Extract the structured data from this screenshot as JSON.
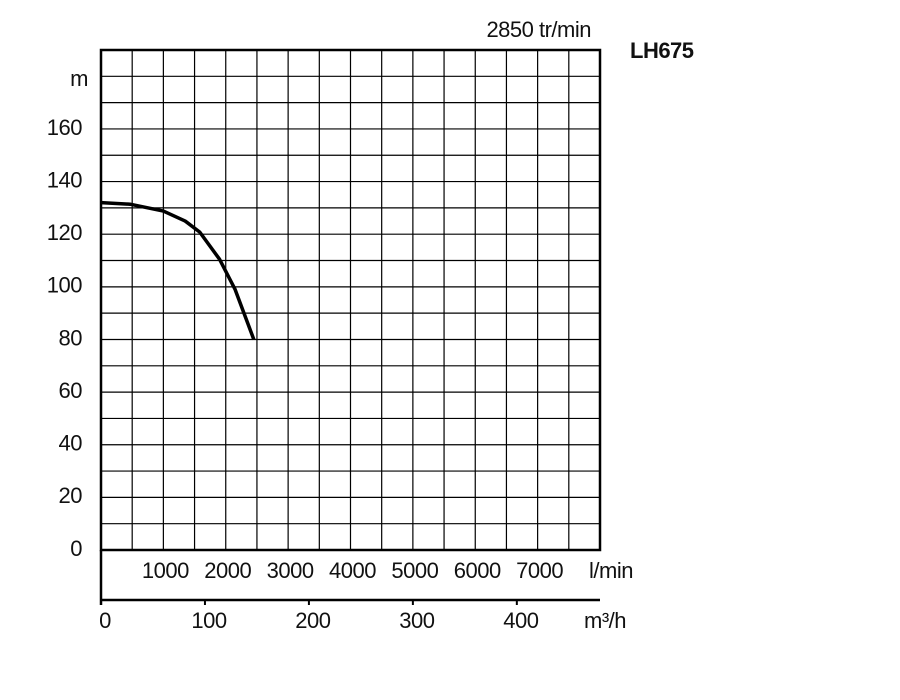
{
  "chart_data": {
    "type": "line",
    "title": "LH675",
    "subtitle": "2850 tr/min",
    "y_label": "m",
    "x_label": "m³/h",
    "x2_label": "l/min",
    "x": [
      0,
      28,
      60,
      81,
      95,
      114,
      129,
      147
    ],
    "series": [
      {
        "name": "LH675",
        "color": "#000000",
        "values": [
          132,
          131.4,
          128.8,
          125,
          120.8,
          110.5,
          99,
          80
        ]
      }
    ],
    "xlim": [
      0,
      480
    ],
    "xticks": [
      0,
      100,
      200,
      300,
      400
    ],
    "x2lim": [
      0,
      8000
    ],
    "x2ticks": [
      1000,
      2000,
      3000,
      4000,
      5000,
      6000,
      7000
    ],
    "ylim": [
      0,
      190
    ],
    "yticks": [
      0,
      20,
      40,
      60,
      80,
      100,
      120,
      140,
      160
    ],
    "xgrid": [
      30,
      60,
      90,
      120,
      150,
      180,
      210,
      240,
      270,
      300,
      330,
      360,
      390,
      420,
      450
    ],
    "ygrid": [
      10,
      20,
      30,
      40,
      50,
      60,
      70,
      80,
      90,
      100,
      110,
      120,
      130,
      140,
      150,
      160,
      170,
      180
    ],
    "grid": true
  }
}
